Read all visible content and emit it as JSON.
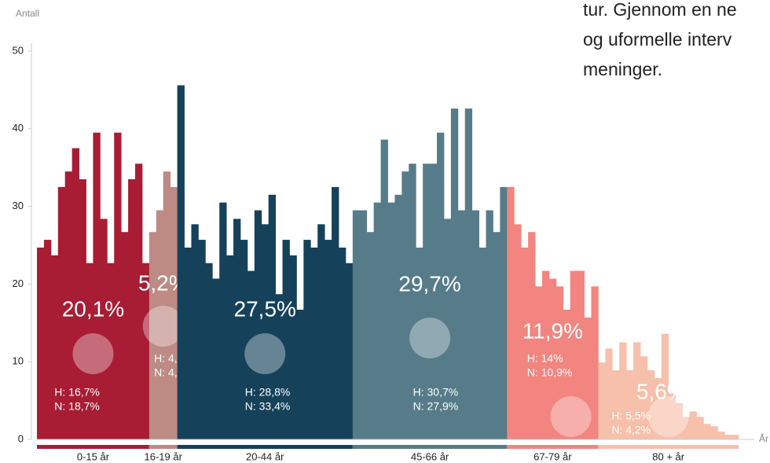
{
  "chart_data": {
    "type": "bar",
    "y_label": "Antall",
    "x_label": "År",
    "text_lines": [
      "tur. Gjennom en ne",
      "og uformelle interv",
      "meninger."
    ],
    "ylim": [
      0,
      50
    ],
    "yticks": [
      0,
      10,
      20,
      30,
      40,
      50
    ],
    "groups": [
      {
        "name": "0-15 år",
        "color": "#a81c34",
        "share": "20,1%",
        "h": "H: 16,7%",
        "n": "N: 18,7%",
        "values": [
          24.7,
          25.7,
          23.7,
          32.5,
          34.5,
          37.5,
          33.5,
          22.7,
          39.5,
          28.4,
          22.7,
          39.5,
          26.7,
          33.5,
          35.5,
          22.7
        ]
      },
      {
        "name": "16-19 år",
        "color": "#be8a84",
        "share": "5,2%",
        "h": "H: 4,8%",
        "n": "N: 4,8%",
        "values": [
          26.7,
          29.5,
          34.5,
          32.5
        ]
      },
      {
        "name": "20-44  år",
        "color": "#15425a",
        "share": "27,5%",
        "h": "H: 28,8%",
        "n": "N: 33,4%",
        "values": [
          45.6,
          24.7,
          27.7,
          25.7,
          22.7,
          20.7,
          30.5,
          23.7,
          28.4,
          25.7,
          21.7,
          29.5,
          27.7,
          31.5,
          18.7,
          25.7,
          23.7,
          16.7,
          25.7,
          24.7,
          27.7,
          25.7,
          32.5,
          24.7,
          22.7
        ]
      },
      {
        "name": "45-66 år",
        "color": "#567c89",
        "share": "29,7%",
        "h": "H: 30,7%",
        "n": "N: 27,9%",
        "values": [
          29.5,
          29.5,
          26.7,
          30.5,
          38.6,
          30.5,
          31.5,
          34.5,
          35.5,
          24.7,
          35.5,
          35.5,
          39.5,
          28.4,
          42.6,
          29.5,
          42.6,
          29.5,
          24.7,
          29.5,
          26.7,
          32.5
        ]
      },
      {
        "name": "67-79 år",
        "color": "#f2857f",
        "share": "11,9%",
        "h": "H: 14%",
        "n": "N: 10,9%",
        "values": [
          32.5,
          27.7,
          24.7,
          26.7,
          19.7,
          21.7,
          20.7,
          19.7,
          16.7,
          21.7,
          21.7,
          15.7,
          19.7
        ]
      },
      {
        "name": "80 + år",
        "color": "#f6c0aa",
        "share": "5,6%",
        "h": "H: 5,5%",
        "n": "N: 4,2%",
        "values": [
          9.9,
          11.7,
          8.9,
          12.5,
          8.9,
          12.5,
          10.7,
          8.9,
          7.9,
          13.6,
          5.9,
          4.7,
          2.9,
          3.6,
          2.9,
          2.0,
          1.7,
          1.0,
          0.6,
          0.6
        ]
      }
    ]
  }
}
